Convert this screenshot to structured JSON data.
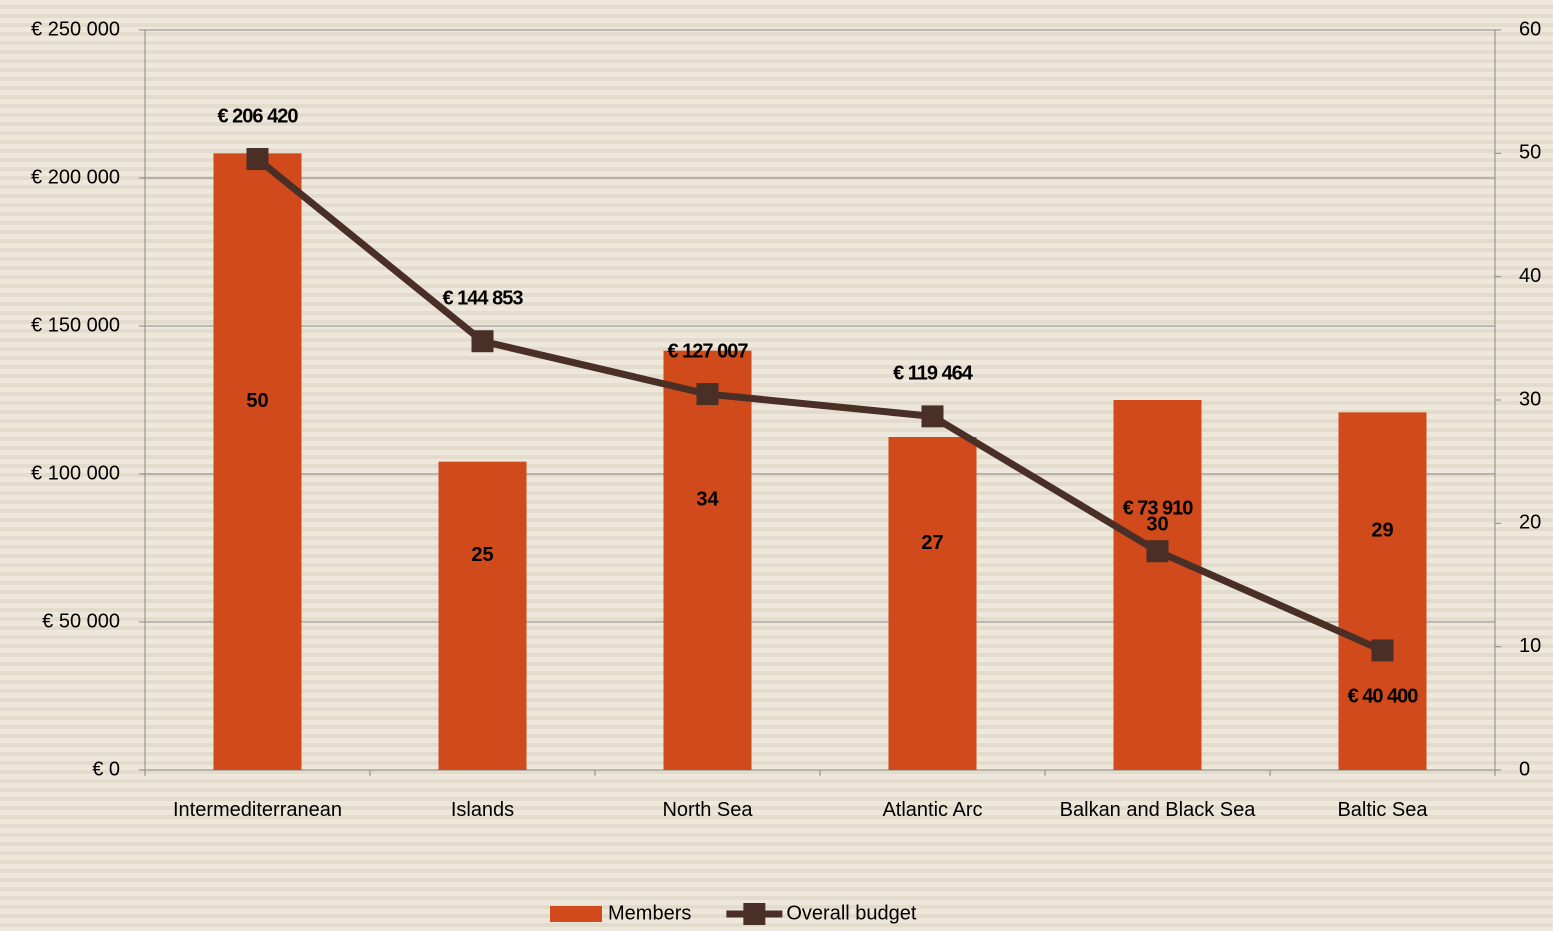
{
  "chart_data": {
    "type": "bar",
    "categories": [
      "Intermediterranean",
      "Islands",
      "North Sea",
      "Atlantic Arc",
      "Balkan and Black Sea",
      "Baltic Sea"
    ],
    "series": [
      {
        "name": "Members",
        "type": "bar",
        "axis": "y2",
        "color": "#d04a1b",
        "values": [
          50,
          25,
          34,
          27,
          30,
          29
        ]
      },
      {
        "name": "Overall budget",
        "type": "line",
        "color": "#4a2f27",
        "values": [
          206420,
          144853,
          127007,
          119464,
          73910,
          40400
        ],
        "value_labels": [
          "€ 206 420",
          "€ 144 853",
          "€ 127 007",
          "€ 119 464",
          "€ 73 910",
          "€ 40 400"
        ]
      }
    ],
    "ylim": [
      0,
      250000
    ],
    "yticks": [
      {
        "value": 0,
        "label": "€ 0"
      },
      {
        "value": 50000,
        "label": "€ 50 000"
      },
      {
        "value": 100000,
        "label": "€ 100 000"
      },
      {
        "value": 150000,
        "label": "€ 150 000"
      },
      {
        "value": 200000,
        "label": "€ 200 000"
      },
      {
        "value": 250000,
        "label": "€ 250 000"
      }
    ],
    "y2lim": [
      0,
      60
    ],
    "y2ticks": [
      0,
      10,
      20,
      30,
      40,
      50,
      60
    ],
    "grid": true,
    "legend": "bottom"
  }
}
